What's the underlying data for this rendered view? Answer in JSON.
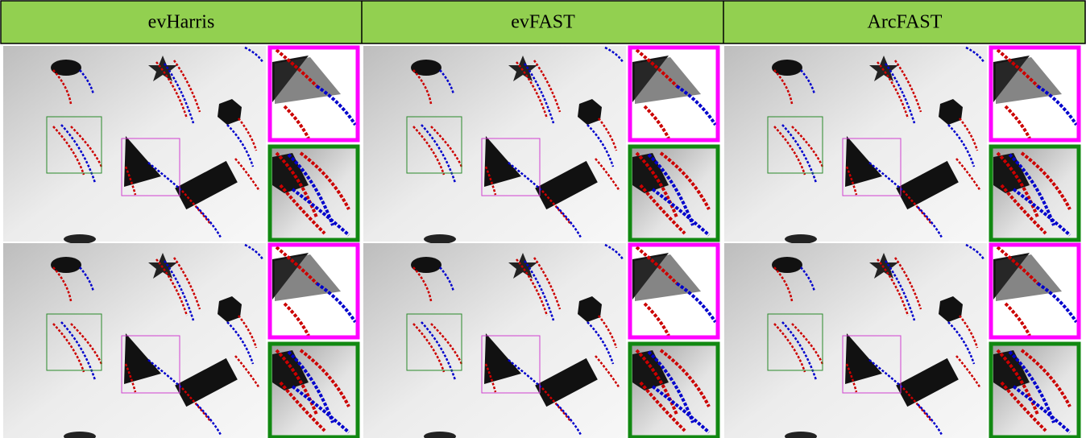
{
  "header": {
    "columns": [
      "evHarris",
      "evFAST",
      "ArcFAST"
    ]
  }
}
